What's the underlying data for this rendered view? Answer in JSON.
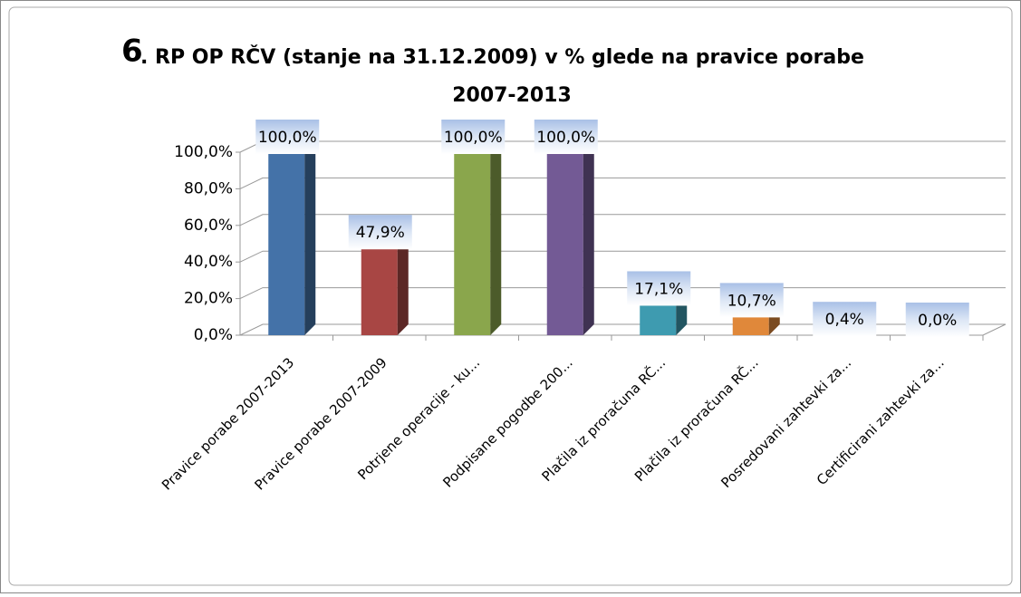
{
  "chart_data": {
    "type": "bar",
    "title": [
      "6",
      ". RP OP RČV (stanje na 31.12.2009) v % glede na pravice porabe",
      "2007-2013"
    ],
    "categories": [
      "Pravice porabe 2007-2013",
      "Pravice porabe 2007-2009",
      "Potrjene operacije - ku...",
      "Podpisane pogodbe 200...",
      "Plačila iz proračuna RČ...",
      "Plačila iz proračuna RČ...",
      "Posredovani zahtevki za...",
      "Certificirani zahtevki za..."
    ],
    "values": [
      100,
      47.9,
      100,
      100,
      17.1,
      10.7,
      0.4,
      0.0
    ],
    "value_labels": [
      "100,0%",
      "47,9%",
      "100,0%",
      "100,0%",
      "17,1%",
      "10,7%",
      "0,4%",
      "0,0%"
    ],
    "colors": [
      "#4472a8",
      "#a84644",
      "#8aa64c",
      "#735a95",
      "#3e9bb0",
      "#e0883a",
      "#7f9fcf",
      "#b0b0b0"
    ],
    "ylim": [
      0,
      100
    ],
    "yticks": [
      {
        "value": 0,
        "label": "0,0%"
      },
      {
        "value": 20,
        "label": "20,0%"
      },
      {
        "value": 40,
        "label": "40,0%"
      },
      {
        "value": 60,
        "label": "60,0%"
      },
      {
        "value": 80,
        "label": "80,0%"
      },
      {
        "value": 100,
        "label": "100,0%"
      }
    ],
    "grid": true
  }
}
